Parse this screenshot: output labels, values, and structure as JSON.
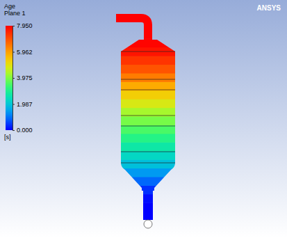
{
  "chart_data": {
    "type": "contour",
    "title": "Age",
    "subtitle": "Plane 1",
    "values": [
      0.0,
      0.0,
      0.1,
      0.4,
      0.9,
      1.4,
      1.9,
      2.3,
      2.7,
      3.1,
      3.5,
      3.9,
      4.3,
      4.8,
      5.3,
      5.8,
      6.4,
      6.9,
      7.3,
      7.7,
      7.9,
      7.95,
      7.95,
      7.95
    ],
    "colorbar": {
      "range": [
        0,
        7.95
      ],
      "ticks": [
        {
          "value": 0,
          "label": "0.000"
        },
        {
          "value": 1.987,
          "label": "1.987"
        },
        {
          "value": 3.975,
          "label": "3.975"
        },
        {
          "value": 5.962,
          "label": "5.962"
        },
        {
          "value": 7.95,
          "label": "7.950"
        }
      ],
      "unit": "[s]"
    },
    "watermark": "ANSYS"
  }
}
